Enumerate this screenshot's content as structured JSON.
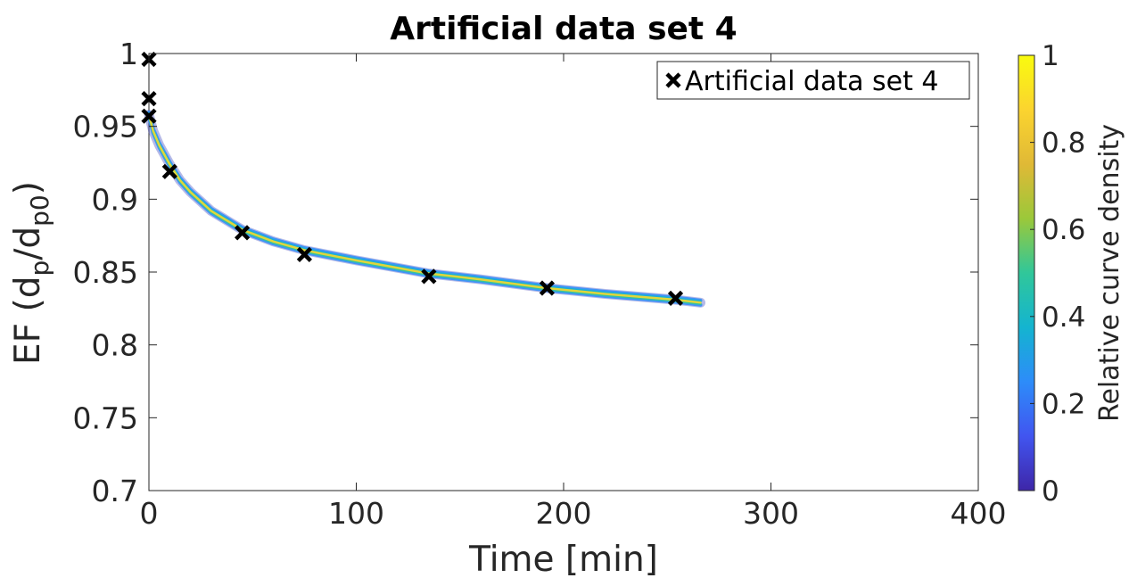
{
  "chart_data": {
    "type": "line",
    "title": "Artificial data set 4",
    "xlabel": "Time [min]",
    "ylabel": {
      "main": "EF (d",
      "sub1": "p",
      "mid": "/d",
      "sub2": "p0",
      "end": ")"
    },
    "xlim": [
      0,
      400
    ],
    "ylim": [
      0.7,
      1
    ],
    "xticks": [
      0,
      100,
      200,
      300,
      400
    ],
    "yticks": [
      0.7,
      0.75,
      0.8,
      0.85,
      0.9,
      0.95,
      1
    ],
    "xtick_labels": [
      "0",
      "100",
      "200",
      "300",
      "400"
    ],
    "ytick_labels": [
      "0.7",
      "0.75",
      "0.8",
      "0.85",
      "0.9",
      "0.95",
      "1"
    ],
    "grid": false,
    "legend": {
      "location": "top-right",
      "entries": [
        "Artificial data set 4"
      ]
    },
    "series": [
      {
        "name": "Artificial data set 4",
        "kind": "scatter",
        "marker": "x",
        "color": "#000000",
        "x": [
          0,
          0,
          0,
          10,
          45,
          75,
          135,
          192,
          254
        ],
        "y": [
          0.996,
          0.969,
          0.957,
          0.919,
          0.877,
          0.862,
          0.847,
          0.839,
          0.832
        ]
      },
      {
        "kind": "fitted curve band",
        "x": [
          0,
          2,
          5,
          10,
          15,
          20,
          30,
          45,
          60,
          75,
          100,
          135,
          160,
          192,
          220,
          254,
          266
        ],
        "y": [
          0.958,
          0.947,
          0.937,
          0.924,
          0.913,
          0.905,
          0.892,
          0.879,
          0.871,
          0.865,
          0.858,
          0.849,
          0.845,
          0.839,
          0.835,
          0.831,
          0.829
        ]
      }
    ],
    "colorbar": {
      "label": "Relative curve density",
      "range": [
        0,
        1
      ],
      "ticks": [
        0,
        0.2,
        0.4,
        0.6,
        0.8,
        1
      ],
      "tick_labels": [
        "0",
        "0.2",
        "0.4",
        "0.6",
        "0.8",
        "1"
      ],
      "colormap": [
        "#3e26a8",
        "#4155f0",
        "#2d8cf9",
        "#14b4d0",
        "#30c79a",
        "#9bc83a",
        "#e0b936",
        "#fbd42f",
        "#f9fb0e"
      ]
    }
  }
}
